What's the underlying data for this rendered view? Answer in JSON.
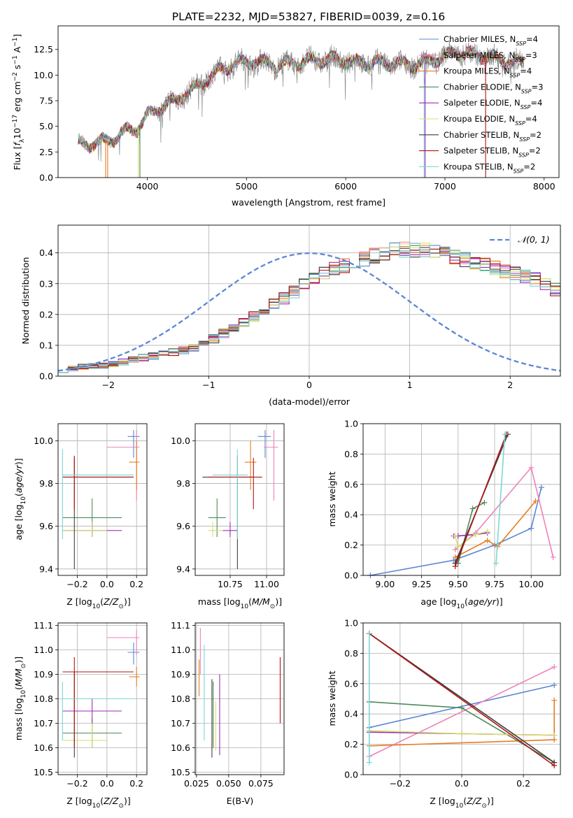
{
  "figure": {
    "title": "PLATE=2232, MJD=53827, FIBERID=0039, z=0.16"
  },
  "colors": {
    "series": [
      "#5b87d6",
      "#ef82b8",
      "#e67c22",
      "#4f8a5b",
      "#9b2fb5",
      "#d6e06a",
      "#3f3f3f",
      "#b01515",
      "#7dd6d6"
    ],
    "data_spectrum": "#808080"
  },
  "chart_data": [
    {
      "id": "spectrum",
      "type": "line",
      "xlabel": "wavelength [Angstrom, rest frame]",
      "ylabel": "Flux [f_λ 10^-17 erg cm^-2 s^-1 A^-1]",
      "xlim": [
        3100,
        8150
      ],
      "ylim": [
        0,
        14.8
      ],
      "xticks": [
        "4000",
        "5000",
        "6000",
        "7000",
        "8000"
      ],
      "yticks": [
        "0.0",
        "2.5",
        "5.0",
        "7.5",
        "10.0",
        "12.5"
      ],
      "grid": false,
      "legend_position": "top-right",
      "series": [
        {
          "name": "Chabrier MILES, N_SSP=4"
        },
        {
          "name": "Salpeter MILES, N_SSP=3"
        },
        {
          "name": "Kroupa MILES, N_SSP=4"
        },
        {
          "name": "Chabrier ELODIE, N_SSP=3"
        },
        {
          "name": "Salpeter ELODIE, N_SSP=4"
        },
        {
          "name": "Kroupa ELODIE, N_SSP=4"
        },
        {
          "name": "Chabrier STELIB, N_SSP=2"
        },
        {
          "name": "Salpeter STELIB, N_SSP=2"
        },
        {
          "name": "Kroupa STELIB, N_SSP=2"
        }
      ],
      "continuum": {
        "x": [
          3300,
          3400,
          3500,
          3600,
          3700,
          3800,
          3900,
          4000,
          4100,
          4300,
          4500,
          4700,
          4900,
          5100,
          5300,
          5500,
          5700,
          5900,
          6100,
          6300,
          6500,
          6700,
          6900,
          7100,
          7300,
          7500,
          7700
        ],
        "y": [
          3.4,
          3.2,
          3.4,
          3.6,
          4.0,
          4.6,
          4.8,
          6.0,
          6.7,
          7.6,
          8.9,
          10.3,
          11.2,
          11.3,
          11.0,
          11.2,
          11.5,
          11.5,
          11.2,
          11.2,
          11.1,
          11.0,
          11.5,
          12.2,
          12.0,
          11.6,
          11.2
        ]
      }
    },
    {
      "id": "residuals",
      "type": "histogram",
      "xlabel": "(data-model)/error",
      "ylabel": "Normed distribution",
      "xlim": [
        -2.5,
        2.5
      ],
      "ylim": [
        0,
        0.49
      ],
      "xticks": [
        "−2",
        "−1",
        "0",
        "1",
        "2"
      ],
      "yticks": [
        "0.0",
        "0.1",
        "0.2",
        "0.3",
        "0.4"
      ],
      "grid": true,
      "legend_position": "top-right",
      "legend_label": "𝒩(0, 1)",
      "bin_width": 0.1,
      "bin_start": -2.5,
      "base_profile": [
        0.02,
        0.024,
        0.03,
        0.033,
        0.035,
        0.04,
        0.046,
        0.053,
        0.06,
        0.065,
        0.072,
        0.078,
        0.084,
        0.092,
        0.105,
        0.121,
        0.138,
        0.155,
        0.172,
        0.191,
        0.212,
        0.233,
        0.253,
        0.273,
        0.296,
        0.316,
        0.334,
        0.348,
        0.359,
        0.372,
        0.381,
        0.392,
        0.401,
        0.408,
        0.41,
        0.41,
        0.409,
        0.405,
        0.398,
        0.388,
        0.377,
        0.368,
        0.36,
        0.353,
        0.343,
        0.333,
        0.323,
        0.313,
        0.297,
        0.28,
        0.262,
        0.244,
        0.227,
        0.209,
        0.192,
        0.173,
        0.156,
        0.139,
        0.124,
        0.112,
        0.1,
        0.092,
        0.082,
        0.073,
        0.065,
        0.057,
        0.05,
        0.044,
        0.039,
        0.034,
        0.03,
        0.026,
        0.023,
        0.02,
        0.019,
        0.018,
        0.017,
        0.016,
        0.016,
        0.016,
        0.016,
        0.016,
        0.016,
        0.016,
        0.016,
        0.016,
        0.016,
        0.016,
        0.016,
        0.016,
        0.016,
        0.016,
        0.016,
        0.016,
        0.016,
        0.016,
        0.016,
        0.016,
        0.016,
        0.016
      ]
    },
    {
      "id": "age-vs-Z",
      "type": "scatter",
      "xlabel": "Z [log10(Z/Z⊙)]",
      "ylabel": "age  [log10(age/yr)]",
      "xlim": [
        -0.33,
        0.27
      ],
      "ylim": [
        9.37,
        10.08
      ],
      "xticks": [
        -0.2,
        0.0,
        0.2
      ],
      "yticks": [
        9.4,
        9.6,
        9.8,
        10.0
      ],
      "grid": true
    },
    {
      "id": "age-vs-mass",
      "type": "scatter",
      "xlabel": "mass [log10(M/M⊙)]",
      "ylabel": "",
      "xlim": [
        10.51,
        11.12
      ],
      "ylim": [
        9.37,
        10.08
      ],
      "xticks": [
        10.5,
        10.75,
        11.0
      ],
      "yticks": [
        9.4,
        9.6,
        9.8,
        10.0
      ],
      "grid": true
    },
    {
      "id": "weight-vs-age",
      "type": "line",
      "xlabel": "age  [log10(age/yr)]",
      "ylabel": "mass weight",
      "xlim": [
        8.85,
        10.2
      ],
      "ylim": [
        0,
        1.0
      ],
      "xticks": [
        9.0,
        9.25,
        9.5,
        9.75,
        10.0
      ],
      "yticks": [
        0.0,
        0.2,
        0.4,
        0.6,
        0.8,
        1.0
      ],
      "grid": true,
      "series": [
        {
          "color": 0,
          "x": [
            8.9,
            9.47,
            9.75,
            10.0,
            10.07
          ],
          "y": [
            0.0,
            0.1,
            0.2,
            0.31,
            0.58
          ]
        },
        {
          "color": 1,
          "x": [
            9.48,
            9.62,
            10.0,
            10.15
          ],
          "y": [
            0.17,
            0.28,
            0.71,
            0.12
          ]
        },
        {
          "color": 2,
          "x": [
            9.48,
            9.7,
            9.77,
            10.03
          ],
          "y": [
            0.12,
            0.23,
            0.19,
            0.49
          ]
        },
        {
          "color": 3,
          "x": [
            9.5,
            9.6,
            9.68
          ],
          "y": [
            0.08,
            0.44,
            0.48
          ]
        },
        {
          "color": 4,
          "x": [
            9.47,
            9.5,
            9.62,
            9.7
          ],
          "y": [
            0.26,
            0.26,
            0.27,
            0.28
          ]
        },
        {
          "color": 5,
          "x": [
            9.48,
            9.5,
            9.62,
            9.7
          ],
          "y": [
            0.26,
            0.19,
            0.27,
            0.29
          ]
        },
        {
          "color": 6,
          "x": [
            9.48,
            9.84
          ],
          "y": [
            0.08,
            0.93
          ]
        },
        {
          "color": 7,
          "x": [
            9.48,
            9.83
          ],
          "y": [
            0.06,
            0.93
          ]
        },
        {
          "color": 8,
          "x": [
            9.76,
            9.82
          ],
          "y": [
            0.08,
            0.93
          ]
        }
      ]
    },
    {
      "id": "mass-vs-Z",
      "type": "scatter",
      "xlabel": "Z [log10(Z/Z⊙)]",
      "ylabel": "mass [log10(M/M⊙)]",
      "xlim": [
        -0.33,
        0.27
      ],
      "ylim": [
        10.49,
        11.11
      ],
      "xticks": [
        -0.2,
        0.0,
        0.2
      ],
      "yticks": [
        10.5,
        10.6,
        10.7,
        10.8,
        10.9,
        11.0,
        11.1
      ],
      "grid": true
    },
    {
      "id": "mass-vs-ebv",
      "type": "scatter",
      "xlabel": "E(B-V)",
      "ylabel": "",
      "xlim": [
        0.024,
        0.093
      ],
      "ylim": [
        10.49,
        11.11
      ],
      "xticks": [
        0.025,
        0.05,
        0.075
      ],
      "yticks": [
        10.5,
        10.6,
        10.7,
        10.8,
        10.9,
        11.0,
        11.1
      ],
      "grid": true
    },
    {
      "id": "weight-vs-Z",
      "type": "line",
      "xlabel": "Z [log10(Z/Z⊙)]",
      "ylabel": "mass weight",
      "xlim": [
        -0.32,
        0.32
      ],
      "ylim": [
        0,
        1.0
      ],
      "xticks": [
        -0.2,
        0.0,
        0.2
      ],
      "yticks": [
        0.0,
        0.2,
        0.4,
        0.6,
        0.8,
        1.0
      ],
      "grid": true,
      "series": [
        {
          "color": 0,
          "x": [
            -0.3,
            0.3
          ],
          "y": [
            0.31,
            0.59
          ]
        },
        {
          "color": 1,
          "x": [
            -0.3,
            0.3
          ],
          "y": [
            0.12,
            0.71
          ]
        },
        {
          "color": 2,
          "x": [
            -0.3,
            0.3,
            0.3
          ],
          "y": [
            0.19,
            0.23,
            0.49
          ]
        },
        {
          "color": 3,
          "x": [
            -0.3,
            0.0,
            0.3
          ],
          "y": [
            0.48,
            0.44,
            0.08
          ]
        },
        {
          "color": 4,
          "x": [
            -0.3,
            0.0,
            0.3
          ],
          "y": [
            0.28,
            0.27,
            0.26
          ]
        },
        {
          "color": 5,
          "x": [
            -0.3,
            0.0,
            0.3
          ],
          "y": [
            0.29,
            0.27,
            0.26
          ]
        },
        {
          "color": 6,
          "x": [
            -0.3,
            0.3
          ],
          "y": [
            0.93,
            0.08
          ]
        },
        {
          "color": 7,
          "x": [
            -0.3,
            0.3
          ],
          "y": [
            0.93,
            0.06
          ]
        },
        {
          "color": 8,
          "x": [
            -0.3,
            -0.3
          ],
          "y": [
            0.08,
            0.93
          ]
        }
      ]
    }
  ],
  "ssp_fits": [
    {
      "color": 0,
      "Z": 0.18,
      "Zlo": 0.14,
      "Zhi": 0.22,
      "age": 10.02,
      "agelo": 9.92,
      "agehi": 10.05,
      "mass": 10.99,
      "masslo": 10.94,
      "masshi": 11.03,
      "ebv": 0.038,
      "ebvlo": 0.0,
      "ebvhi": 0.0
    },
    {
      "color": 1,
      "Z": 0.2,
      "Zlo": 0.0,
      "Zhi": 0.22,
      "age": 9.97,
      "agelo": 9.72,
      "agehi": 10.05,
      "mass": 11.05,
      "masslo": 10.98,
      "masshi": 11.08,
      "ebv": 0.028,
      "ebvlo": 10.9,
      "ebvhi": 11.09
    },
    {
      "color": 2,
      "Z": 0.2,
      "Zlo": 0.15,
      "Zhi": 0.22,
      "age": 9.9,
      "agelo": 9.77,
      "agehi": 10.0,
      "mass": 10.89,
      "masslo": 10.85,
      "masshi": 10.93,
      "ebv": 0.027,
      "ebvlo": 10.81,
      "ebvhi": 10.96
    },
    {
      "color": 3,
      "Z": -0.1,
      "Zlo": -0.3,
      "Zhi": 0.1,
      "age": 9.64,
      "agelo": 9.55,
      "agehi": 9.73,
      "mass": 10.66,
      "masslo": 10.6,
      "masshi": 10.72,
      "ebv": 0.038,
      "ebvlo": 10.6,
      "ebvhi": 10.87
    },
    {
      "color": 4,
      "Z": -0.1,
      "Zlo": -0.3,
      "Zhi": 0.1,
      "age": 9.58,
      "agelo": 9.55,
      "agehi": 9.62,
      "mass": 10.75,
      "masslo": 10.7,
      "masshi": 10.8,
      "ebv": 0.043,
      "ebvlo": 10.57,
      "ebvhi": 10.9
    },
    {
      "color": 5,
      "Z": -0.1,
      "Zlo": -0.3,
      "Zhi": 0.0,
      "age": 9.58,
      "agelo": 9.55,
      "agehi": 9.62,
      "mass": 10.63,
      "masslo": 10.6,
      "masshi": 10.7,
      "ebv": 0.04,
      "ebvlo": 10.59,
      "ebvhi": 10.79
    },
    {
      "color": 6,
      "Z": -0.22,
      "Zlo": -0.3,
      "Zhi": 0.18,
      "age": 9.83,
      "agelo": 9.4,
      "agehi": 9.93,
      "mass": 10.8,
      "masslo": 10.56,
      "masshi": 10.91,
      "ebv": 0.037,
      "ebvlo": 10.56,
      "ebvhi": 10.88
    },
    {
      "color": 7,
      "Z": -0.22,
      "Zlo": -0.3,
      "Zhi": 0.18,
      "age": 9.83,
      "agelo": 9.68,
      "agehi": 9.92,
      "mass": 10.91,
      "masslo": 10.6,
      "masshi": 10.97,
      "ebv": 0.09,
      "ebvlo": 10.7,
      "ebvhi": 10.97
    },
    {
      "color": 8,
      "Z": -0.3,
      "Zlo": -0.3,
      "Zhi": 0.18,
      "age": 9.84,
      "agelo": 9.54,
      "agehi": 9.96,
      "mass": 10.8,
      "masslo": 10.63,
      "masshi": 10.87,
      "ebv": 0.031,
      "ebvlo": 10.63,
      "ebvhi": 11.02
    }
  ]
}
